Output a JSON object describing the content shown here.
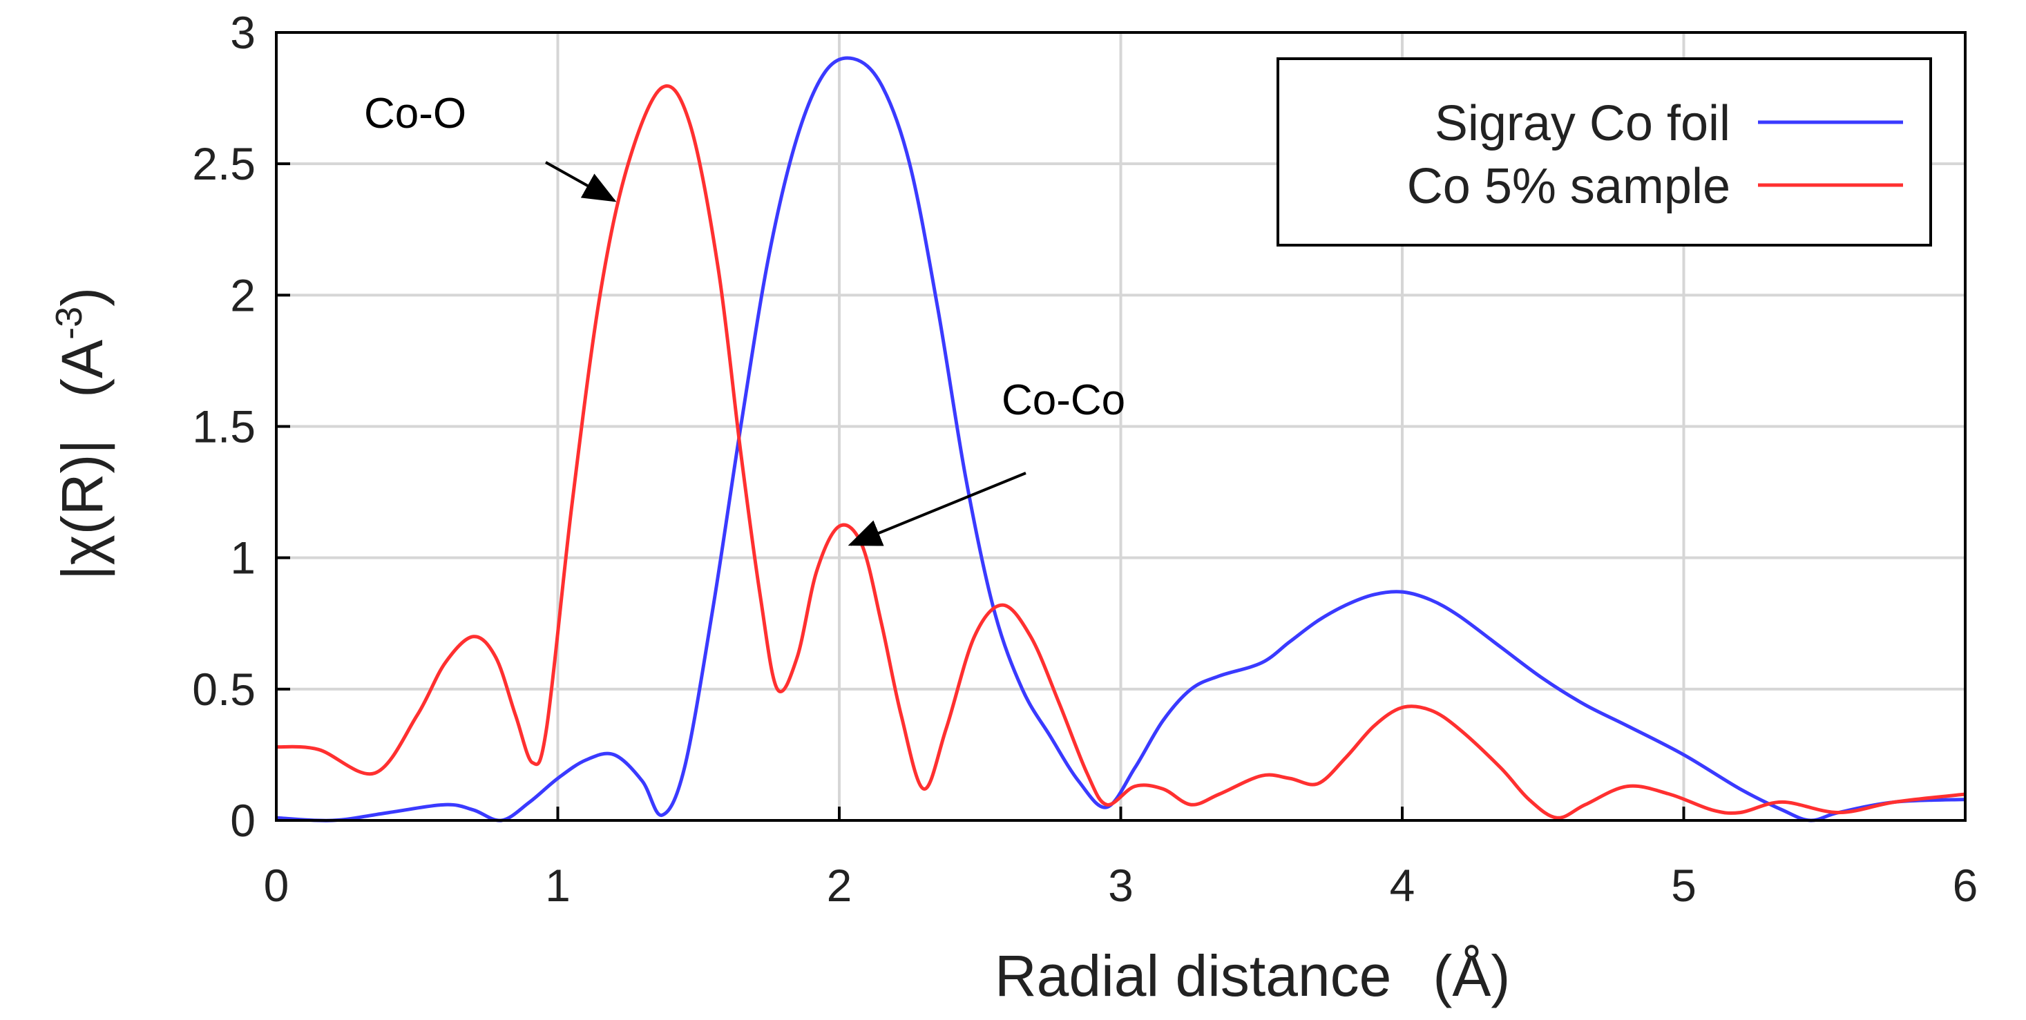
{
  "chart_data": {
    "type": "line",
    "xlabel": "Radial distance",
    "xlabel_unit": "(Å)",
    "ylabel": "|χ(R)|",
    "ylabel_unit_base": "(A",
    "ylabel_unit_exp": "-3",
    "ylabel_unit_close": ")",
    "xlim": [
      0,
      6
    ],
    "ylim": [
      0,
      3
    ],
    "xticks": [
      "0",
      "1",
      "2",
      "3",
      "4",
      "5",
      "6"
    ],
    "yticks": [
      "0",
      "0.5",
      "1",
      "1.5",
      "2",
      "2.5",
      "3"
    ],
    "grid": true,
    "legend_position": "top-right",
    "series": [
      {
        "name": "Sigray Co foil",
        "color": "#3a3aff",
        "points": [
          [
            0,
            0.01
          ],
          [
            0.2,
            0.0
          ],
          [
            0.4,
            0.03
          ],
          [
            0.6,
            0.06
          ],
          [
            0.7,
            0.04
          ],
          [
            0.8,
            0.0
          ],
          [
            0.9,
            0.07
          ],
          [
            1.0,
            0.16
          ],
          [
            1.1,
            0.23
          ],
          [
            1.2,
            0.25
          ],
          [
            1.3,
            0.15
          ],
          [
            1.37,
            0.02
          ],
          [
            1.45,
            0.2
          ],
          [
            1.55,
            0.8
          ],
          [
            1.65,
            1.5
          ],
          [
            1.75,
            2.15
          ],
          [
            1.85,
            2.6
          ],
          [
            1.95,
            2.85
          ],
          [
            2.05,
            2.9
          ],
          [
            2.15,
            2.8
          ],
          [
            2.25,
            2.5
          ],
          [
            2.35,
            1.95
          ],
          [
            2.45,
            1.3
          ],
          [
            2.55,
            0.8
          ],
          [
            2.65,
            0.5
          ],
          [
            2.75,
            0.32
          ],
          [
            2.85,
            0.15
          ],
          [
            2.95,
            0.05
          ],
          [
            3.05,
            0.2
          ],
          [
            3.15,
            0.38
          ],
          [
            3.25,
            0.5
          ],
          [
            3.35,
            0.55
          ],
          [
            3.5,
            0.6
          ],
          [
            3.6,
            0.68
          ],
          [
            3.7,
            0.76
          ],
          [
            3.8,
            0.82
          ],
          [
            3.9,
            0.86
          ],
          [
            4.0,
            0.87
          ],
          [
            4.1,
            0.84
          ],
          [
            4.2,
            0.78
          ],
          [
            4.35,
            0.66
          ],
          [
            4.5,
            0.54
          ],
          [
            4.65,
            0.44
          ],
          [
            4.8,
            0.36
          ],
          [
            5.0,
            0.25
          ],
          [
            5.2,
            0.12
          ],
          [
            5.35,
            0.04
          ],
          [
            5.45,
            0.0
          ],
          [
            5.55,
            0.03
          ],
          [
            5.75,
            0.07
          ],
          [
            6.0,
            0.08
          ]
        ]
      },
      {
        "name": "Co 5% sample",
        "color": "#ff3030",
        "points": [
          [
            0,
            0.28
          ],
          [
            0.15,
            0.27
          ],
          [
            0.35,
            0.18
          ],
          [
            0.5,
            0.4
          ],
          [
            0.6,
            0.6
          ],
          [
            0.7,
            0.7
          ],
          [
            0.78,
            0.62
          ],
          [
            0.85,
            0.4
          ],
          [
            0.91,
            0.22
          ],
          [
            0.96,
            0.35
          ],
          [
            1.05,
            1.2
          ],
          [
            1.15,
            2.0
          ],
          [
            1.25,
            2.5
          ],
          [
            1.37,
            2.79
          ],
          [
            1.47,
            2.65
          ],
          [
            1.57,
            2.1
          ],
          [
            1.65,
            1.4
          ],
          [
            1.72,
            0.85
          ],
          [
            1.78,
            0.5
          ],
          [
            1.85,
            0.62
          ],
          [
            1.92,
            0.95
          ],
          [
            2.0,
            1.12
          ],
          [
            2.08,
            1.05
          ],
          [
            2.15,
            0.75
          ],
          [
            2.22,
            0.4
          ],
          [
            2.3,
            0.12
          ],
          [
            2.38,
            0.35
          ],
          [
            2.48,
            0.7
          ],
          [
            2.58,
            0.82
          ],
          [
            2.68,
            0.7
          ],
          [
            2.78,
            0.45
          ],
          [
            2.88,
            0.18
          ],
          [
            2.95,
            0.06
          ],
          [
            3.05,
            0.13
          ],
          [
            3.15,
            0.12
          ],
          [
            3.25,
            0.06
          ],
          [
            3.35,
            0.1
          ],
          [
            3.5,
            0.17
          ],
          [
            3.6,
            0.16
          ],
          [
            3.7,
            0.14
          ],
          [
            3.8,
            0.24
          ],
          [
            3.9,
            0.36
          ],
          [
            4.0,
            0.43
          ],
          [
            4.1,
            0.42
          ],
          [
            4.2,
            0.35
          ],
          [
            4.35,
            0.2
          ],
          [
            4.45,
            0.08
          ],
          [
            4.55,
            0.01
          ],
          [
            4.65,
            0.06
          ],
          [
            4.8,
            0.13
          ],
          [
            4.95,
            0.1
          ],
          [
            5.1,
            0.04
          ],
          [
            5.2,
            0.03
          ],
          [
            5.35,
            0.07
          ],
          [
            5.55,
            0.03
          ],
          [
            5.75,
            0.07
          ],
          [
            6.0,
            0.1
          ]
        ]
      }
    ],
    "annotations": [
      {
        "text": "Co-O",
        "target": [
          1.2,
          2.36
        ]
      },
      {
        "text": "Co-Co",
        "target": [
          2.04,
          1.05
        ]
      }
    ]
  }
}
